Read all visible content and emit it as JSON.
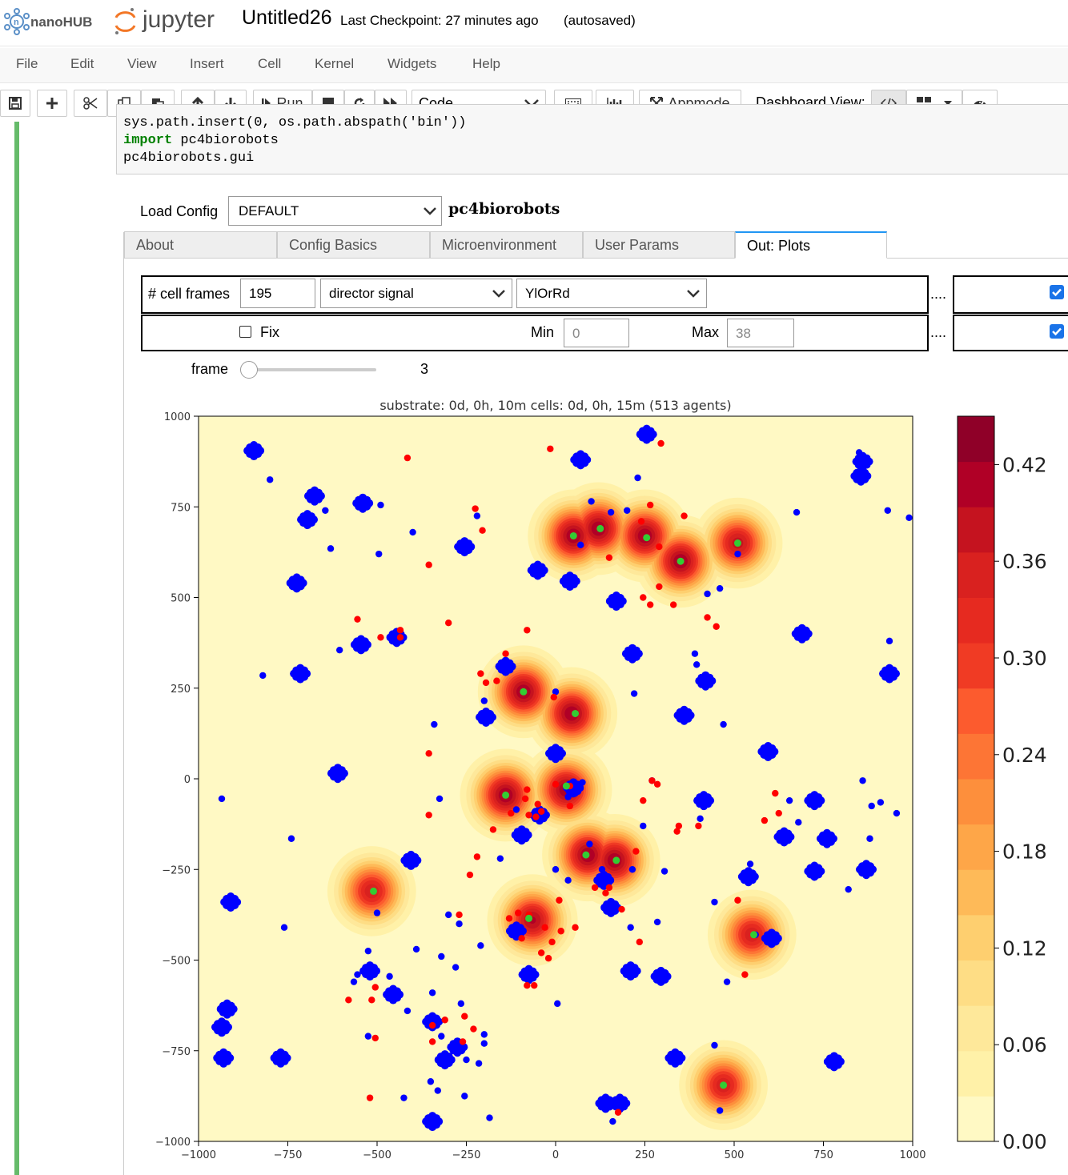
{
  "header": {
    "nanohub_logo": "nanoHUB",
    "jupyter_logo": "jupyter",
    "notebook_title": "Untitled26",
    "checkpoint": "Last Checkpoint: 27 minutes ago",
    "autosaved": "(autosaved)"
  },
  "menu": [
    "File",
    "Edit",
    "View",
    "Insert",
    "Cell",
    "Kernel",
    "Widgets",
    "Help"
  ],
  "toolbar": {
    "run_label": "Run",
    "cell_type": "Code",
    "appmode_label": "Appmode",
    "dashboard_label": "Dashboard View:"
  },
  "code": {
    "line1": "sys.path.insert(0, os.path.abspath('bin'))",
    "line2_kw": "import",
    "line2_rest": " pc4biorobots",
    "line3": "pc4biorobots.gui"
  },
  "config": {
    "load_label": "Load Config",
    "selected": "DEFAULT",
    "app_name": "pc4biorobots"
  },
  "tabs": [
    {
      "label": "About",
      "active": false
    },
    {
      "label": "Config Basics",
      "active": false
    },
    {
      "label": "Microenvironment",
      "active": false
    },
    {
      "label": "User Params",
      "active": false
    },
    {
      "label": "Out: Plots",
      "active": true
    }
  ],
  "plot_controls": {
    "frames_label": "# cell frames",
    "frames_value": "195",
    "field_select": "director signal",
    "colormap_select": "YlOrRd",
    "fix_label": "Fix",
    "fix_checked": false,
    "min_label": "Min",
    "min_value": "0",
    "max_label": "Max",
    "max_value": "38",
    "dots": "....",
    "cells_checked": true,
    "substrate_checked": true,
    "frame_label": "frame",
    "frame_value": "3",
    "frame_fraction": 0.015
  },
  "chart_data": {
    "type": "scatter",
    "title": "substrate: 0d, 0h, 10m   cells: 0d, 0h, 15m (513 agents)",
    "xlim": [
      -1000,
      1000
    ],
    "ylim": [
      -1000,
      1000
    ],
    "x_ticks": [
      -1000,
      -750,
      -500,
      -250,
      0,
      250,
      500,
      750,
      1000
    ],
    "y_ticks": [
      1000,
      750,
      500,
      250,
      0,
      -250,
      -500,
      -750,
      -1000
    ],
    "x_tick_labels": [
      "−1000",
      "−750",
      "−500",
      "−250",
      "0",
      "250",
      "500",
      "750",
      "1000"
    ],
    "y_tick_labels": [
      "1000",
      "750",
      "500",
      "250",
      "0",
      "−250",
      "−500",
      "−750",
      "−1000"
    ],
    "colorbar": {
      "colormap": "YlOrRd",
      "ticks": [
        0.0,
        0.06,
        0.12,
        0.18,
        0.24,
        0.3,
        0.36,
        0.42
      ],
      "tick_labels": [
        "0.00",
        "0.06",
        "0.12",
        "0.18",
        "0.24",
        "0.30",
        "0.36",
        "0.42"
      ],
      "max": 0.45,
      "colors": [
        "#fff9c4",
        "#fff1a8",
        "#fee89a",
        "#fedd85",
        "#fecf6f",
        "#feba58",
        "#fea648",
        "#fd8f3c",
        "#fd7535",
        "#fc5b2e",
        "#f03b24",
        "#e62a20",
        "#d9211f",
        "#c5131f",
        "#b00026",
        "#8f0028"
      ]
    },
    "hotspots": [
      {
        "x": 50,
        "y": 670,
        "peak": 0.42
      },
      {
        "x": 120,
        "y": 690,
        "peak": 0.42
      },
      {
        "x": 250,
        "y": 670,
        "peak": 0.42
      },
      {
        "x": 350,
        "y": 600,
        "peak": 0.42
      },
      {
        "x": 510,
        "y": 650,
        "peak": 0.38
      },
      {
        "x": -90,
        "y": 240,
        "peak": 0.42
      },
      {
        "x": 45,
        "y": 180,
        "peak": 0.42
      },
      {
        "x": -140,
        "y": -45,
        "peak": 0.42
      },
      {
        "x": 30,
        "y": -30,
        "peak": 0.42
      },
      {
        "x": 90,
        "y": -210,
        "peak": 0.42
      },
      {
        "x": 165,
        "y": -225,
        "peak": 0.42
      },
      {
        "x": -65,
        "y": -390,
        "peak": 0.4
      },
      {
        "x": -515,
        "y": -310,
        "peak": 0.36
      },
      {
        "x": 550,
        "y": -430,
        "peak": 0.36
      },
      {
        "x": 470,
        "y": -845,
        "peak": 0.36
      }
    ],
    "series": [
      {
        "name": "blue cells",
        "color": "#0000ff",
        "clusters": [
          [
            -845,
            905
          ],
          [
            -675,
            780
          ],
          [
            -695,
            715
          ],
          [
            -725,
            540
          ],
          [
            -540,
            760
          ],
          [
            -545,
            370
          ],
          [
            -445,
            390
          ],
          [
            -715,
            290
          ],
          [
            255,
            950
          ],
          [
            70,
            880
          ],
          [
            -255,
            640
          ],
          [
            -50,
            575
          ],
          [
            40,
            545
          ],
          [
            170,
            490
          ],
          [
            -140,
            310
          ],
          [
            -195,
            170
          ],
          [
            215,
            345
          ],
          [
            420,
            270
          ],
          [
            360,
            175
          ],
          [
            0,
            70
          ],
          [
            -45,
            -100
          ],
          [
            -95,
            -155
          ],
          [
            595,
            75
          ],
          [
            415,
            -60
          ],
          [
            -405,
            -225
          ],
          [
            -910,
            -340
          ],
          [
            -610,
            15
          ],
          [
            640,
            -160
          ],
          [
            725,
            -60
          ],
          [
            725,
            -255
          ],
          [
            760,
            -165
          ],
          [
            870,
            -250
          ],
          [
            540,
            -270
          ],
          [
            -110,
            -420
          ],
          [
            -75,
            -540
          ],
          [
            155,
            -355
          ],
          [
            135,
            -280
          ],
          [
            210,
            -530
          ],
          [
            295,
            -545
          ],
          [
            -520,
            -530
          ],
          [
            -455,
            -595
          ],
          [
            -345,
            -670
          ],
          [
            -310,
            -775
          ],
          [
            -275,
            -740
          ],
          [
            -920,
            -635
          ],
          [
            -935,
            -685
          ],
          [
            -930,
            -770
          ],
          [
            -770,
            -770
          ],
          [
            335,
            -770
          ],
          [
            -345,
            -945
          ],
          [
            140,
            -895
          ],
          [
            180,
            -895
          ],
          [
            605,
            -440
          ],
          [
            780,
            -780
          ],
          [
            855,
            835
          ],
          [
            860,
            875
          ],
          [
            935,
            290
          ],
          [
            690,
            400
          ],
          [
            50,
            -25
          ]
        ],
        "points": [
          [
            -800,
            825
          ],
          [
            -630,
            635
          ],
          [
            -645,
            740
          ],
          [
            -490,
            755
          ],
          [
            -820,
            285
          ],
          [
            -740,
            -165
          ],
          [
            -935,
            -55
          ],
          [
            -325,
            -55
          ],
          [
            -760,
            -410
          ],
          [
            -565,
            -560
          ],
          [
            -415,
            -640
          ],
          [
            -495,
            620
          ],
          [
            -605,
            355
          ],
          [
            -340,
            150
          ],
          [
            -275,
            640
          ],
          [
            -270,
            -400
          ],
          [
            -555,
            -540
          ],
          [
            -345,
            -590
          ],
          [
            -250,
            -775
          ],
          [
            -200,
            -705
          ],
          [
            -185,
            -935
          ],
          [
            -320,
            -710
          ],
          [
            70,
            645
          ],
          [
            75,
            -10
          ],
          [
            155,
            735
          ],
          [
            200,
            740
          ],
          [
            215,
            -250
          ],
          [
            130,
            -250
          ],
          [
            -220,
            725
          ],
          [
            -155,
            -220
          ],
          [
            100,
            765
          ],
          [
            390,
            345
          ],
          [
            395,
            315
          ],
          [
            470,
            150
          ],
          [
            510,
            620
          ],
          [
            -200,
            215
          ],
          [
            0,
            240
          ],
          [
            -400,
            680
          ],
          [
            270,
            -5
          ],
          [
            285,
            -395
          ],
          [
            820,
            -305
          ],
          [
            850,
            900
          ],
          [
            990,
            720
          ],
          [
            935,
            380
          ],
          [
            1025,
            920
          ],
          [
            -525,
            -710
          ],
          [
            -110,
            -85
          ],
          [
            35,
            -50
          ],
          [
            55,
            -40
          ],
          [
            35,
            -280
          ],
          [
            210,
            -410
          ],
          [
            480,
            -560
          ],
          [
            5,
            -620
          ],
          [
            160,
            -945
          ],
          [
            445,
            -735
          ],
          [
            460,
            -915
          ],
          [
            -210,
            -460
          ],
          [
            -280,
            -520
          ],
          [
            -390,
            -470
          ],
          [
            -465,
            -545
          ],
          [
            -525,
            -475
          ],
          [
            -320,
            -490
          ],
          [
            -500,
            -370
          ],
          [
            -300,
            -375
          ],
          [
            -265,
            -620
          ],
          [
            -200,
            -730
          ],
          [
            -215,
            -785
          ],
          [
            -255,
            -875
          ],
          [
            -330,
            -860
          ],
          [
            -350,
            -835
          ],
          [
            -425,
            -880
          ],
          [
            1030,
            940
          ],
          [
            230,
            830
          ],
          [
            245,
            -130
          ],
          [
            95,
            -180
          ],
          [
            0,
            -250
          ],
          [
            445,
            -340
          ],
          [
            220,
            235
          ],
          [
            425,
            510
          ],
          [
            460,
            525
          ],
          [
            675,
            735
          ],
          [
            930,
            740
          ],
          [
            910,
            -65
          ],
          [
            680,
            -120
          ],
          [
            655,
            -60
          ],
          [
            860,
            -5
          ],
          [
            885,
            -75
          ],
          [
            405,
            -110
          ],
          [
            305,
            -255
          ],
          [
            560,
            -430
          ],
          [
            545,
            -235
          ],
          [
            880,
            -165
          ],
          [
            955,
            -95
          ]
        ]
      },
      {
        "name": "red cells",
        "color": "#ff0000",
        "points": [
          [
            -415,
            885
          ],
          [
            -15,
            910
          ],
          [
            295,
            925
          ],
          [
            -225,
            745
          ],
          [
            -205,
            685
          ],
          [
            -355,
            590
          ],
          [
            -555,
            440
          ],
          [
            -435,
            390
          ],
          [
            -435,
            410
          ],
          [
            -490,
            390
          ],
          [
            -300,
            430
          ],
          [
            -80,
            410
          ],
          [
            -140,
            345
          ],
          [
            -210,
            290
          ],
          [
            -195,
            265
          ],
          [
            -165,
            270
          ],
          [
            -5,
            225
          ],
          [
            -355,
            70
          ],
          [
            -355,
            -100
          ],
          [
            -175,
            -140
          ],
          [
            -240,
            -265
          ],
          [
            -270,
            -375
          ],
          [
            -310,
            -665
          ],
          [
            -345,
            -725
          ],
          [
            -345,
            -680
          ],
          [
            -260,
            -725
          ],
          [
            -230,
            -690
          ],
          [
            -255,
            -655
          ],
          [
            -515,
            -610
          ],
          [
            -580,
            -610
          ],
          [
            -505,
            -715
          ],
          [
            -505,
            -575
          ],
          [
            -520,
            -880
          ],
          [
            -85,
            -55
          ],
          [
            -125,
            -95
          ],
          [
            40,
            -75
          ],
          [
            -75,
            -100
          ],
          [
            10,
            -335
          ],
          [
            185,
            -360
          ],
          [
            140,
            -315
          ],
          [
            55,
            -410
          ],
          [
            15,
            -420
          ],
          [
            235,
            -450
          ],
          [
            270,
            -5
          ],
          [
            245,
            -60
          ],
          [
            345,
            -130
          ],
          [
            400,
            -130
          ],
          [
            -20,
            -495
          ],
          [
            -80,
            -570
          ],
          [
            -60,
            -570
          ],
          [
            530,
            -540
          ],
          [
            510,
            -335
          ],
          [
            265,
            480
          ],
          [
            245,
            500
          ],
          [
            330,
            480
          ],
          [
            290,
            530
          ],
          [
            425,
            445
          ],
          [
            450,
            420
          ],
          [
            -220,
            -215
          ],
          [
            265,
            755
          ],
          [
            240,
            710
          ],
          [
            360,
            725
          ],
          [
            150,
            610
          ],
          [
            290,
            640
          ],
          [
            585,
            -115
          ],
          [
            625,
            -95
          ],
          [
            615,
            -40
          ],
          [
            285,
            -15
          ],
          [
            -80,
            -30
          ],
          [
            175,
            -920
          ],
          [
            340,
            -145
          ],
          [
            -55,
            -105
          ],
          [
            0,
            -15
          ],
          [
            40,
            -20
          ],
          [
            -50,
            -70
          ],
          [
            -40,
            -90
          ],
          [
            225,
            -200
          ],
          [
            150,
            -300
          ],
          [
            110,
            -300
          ],
          [
            -95,
            -440
          ],
          [
            -30,
            -410
          ],
          [
            -10,
            -450
          ],
          [
            -40,
            -480
          ],
          [
            -130,
            -385
          ],
          [
            -105,
            -370
          ],
          [
            -75,
            -375
          ]
        ]
      },
      {
        "name": "green cells",
        "color": "#33cc33",
        "points": [
          [
            50,
            670
          ],
          [
            125,
            690
          ],
          [
            255,
            665
          ],
          [
            350,
            600
          ],
          [
            510,
            650
          ],
          [
            -90,
            240
          ],
          [
            55,
            180
          ],
          [
            -140,
            -45
          ],
          [
            30,
            -20
          ],
          [
            85,
            -210
          ],
          [
            170,
            -225
          ],
          [
            -75,
            -385
          ],
          [
            -510,
            -310
          ],
          [
            555,
            -430
          ],
          [
            470,
            -845
          ]
        ]
      }
    ]
  }
}
